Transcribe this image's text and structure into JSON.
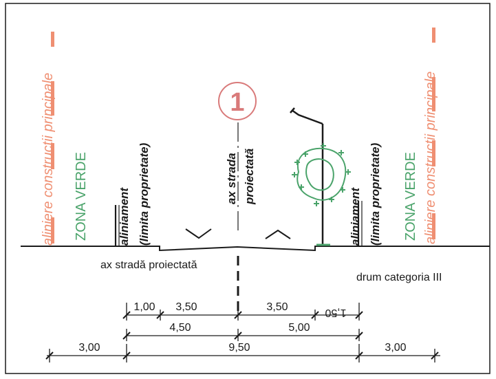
{
  "colors": {
    "ink": "#1a1a1a",
    "salmon": "#ef8f72",
    "green": "#4aa36a",
    "red": "#d97a7a"
  },
  "labels": {
    "left_alignment": "aliniere constructii principale",
    "left_green_zone": "ZONA VERDE",
    "left_boundary_1": "aliniament",
    "left_boundary_2": "(limita proprietate)",
    "axis_1": "ax strada",
    "axis_2": "proiectată",
    "right_boundary_1": "aliniament",
    "right_boundary_2": "(limita proprietate)",
    "right_green_zone": "ZONA VERDE",
    "right_alignment": "aliniere constructii principale",
    "profile_number": "1",
    "axis_caption": "ax stradă proiectată",
    "road_category": "drum categoria III"
  },
  "dimensions": {
    "row1": [
      "1,00",
      "3,50",
      "3,50",
      "1,50"
    ],
    "row2": [
      "4,50",
      "5,00"
    ],
    "row3": [
      "3,00",
      "9,50",
      "3,00"
    ]
  }
}
